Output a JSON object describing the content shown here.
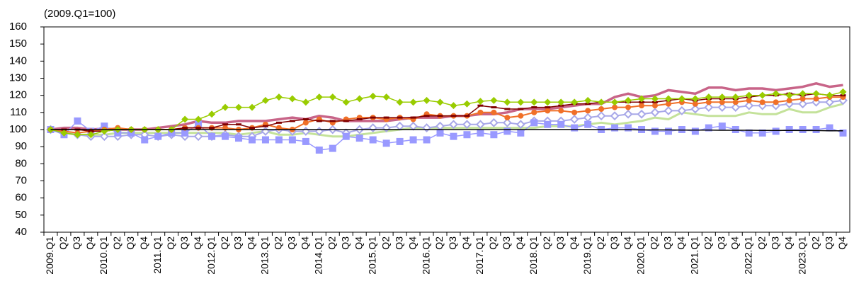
{
  "chart_data": {
    "type": "line",
    "title": "(2009.Q1=100)",
    "categories": [
      "2009.Q1",
      "Q2",
      "Q3",
      "Q4",
      "2010.Q1",
      "Q2",
      "Q3",
      "Q4",
      "2011.Q1",
      "Q2",
      "Q3",
      "Q4",
      "2012.Q1",
      "Q2",
      "Q3",
      "Q4",
      "2013.Q1",
      "Q2",
      "Q3",
      "Q4",
      "2014.Q1",
      "Q2",
      "Q3",
      "Q4",
      "2015.Q1",
      "Q2",
      "Q3",
      "Q4",
      "2016.Q1",
      "Q2",
      "Q3",
      "Q4",
      "2017.Q1",
      "Q2",
      "Q3",
      "Q4",
      "2018.Q1",
      "Q2",
      "Q3",
      "Q4",
      "2019.Q1",
      "Q2",
      "Q3",
      "Q4",
      "2020.Q1",
      "Q2",
      "Q3",
      "Q4",
      "2021.Q1",
      "Q2",
      "Q3",
      "Q4",
      "2022.Q1",
      "Q2",
      "Q3",
      "Q4",
      "2023.Q1",
      "Q2",
      "Q3",
      "Q4"
    ],
    "ylim": [
      40,
      160
    ],
    "yticks": [
      40,
      50,
      60,
      70,
      80,
      90,
      100,
      110,
      120,
      130,
      140,
      150,
      160
    ],
    "series": [
      {
        "color": "#c4e29a",
        "marker": "none",
        "width": 3,
        "values": [
          100,
          98,
          97,
          97,
          97,
          98,
          98,
          98,
          98,
          98,
          98,
          98,
          98,
          98,
          97,
          98,
          99,
          97,
          97,
          98,
          97,
          96,
          96,
          97,
          98,
          99,
          100,
          101,
          101,
          101,
          101,
          101,
          101,
          101,
          101,
          101,
          101,
          102,
          102,
          102,
          103,
          104,
          103,
          104,
          105,
          107,
          106,
          110,
          109,
          108,
          108,
          108,
          110,
          109,
          109,
          112,
          110,
          110,
          113,
          115
        ]
      },
      {
        "color": "#c86488",
        "marker": "none",
        "width": 3.5,
        "values": [
          100,
          101,
          101,
          100,
          100.5,
          100,
          100,
          100,
          101,
          102,
          103,
          105,
          104,
          104,
          105,
          105,
          105,
          106,
          107,
          106,
          108,
          107,
          105,
          105,
          105,
          105,
          106,
          107,
          107,
          107,
          108,
          108,
          109,
          109,
          110,
          112,
          112,
          112,
          113,
          114,
          115,
          115,
          119,
          121,
          119,
          120,
          123,
          122,
          121,
          124.5,
          124.5,
          123,
          124,
          124,
          123,
          124,
          125,
          127,
          125,
          126
        ]
      },
      {
        "color": "#a8a8e8",
        "marker": "diamond-open",
        "width": 2,
        "values": [
          100,
          98,
          97,
          96,
          96,
          96,
          97,
          97,
          96,
          97,
          96,
          96,
          96,
          97,
          96,
          96,
          99,
          100,
          99,
          99,
          99,
          100,
          98,
          100,
          101,
          101,
          102,
          102,
          101,
          102,
          103,
          103,
          103,
          104,
          104,
          103,
          105,
          105,
          105,
          106,
          107,
          108,
          108,
          109,
          109,
          110,
          111,
          111,
          112,
          113,
          113,
          113,
          114,
          114,
          114,
          115,
          115,
          116,
          116,
          117
        ]
      },
      {
        "color": "#9999ff",
        "marker": "square",
        "width": 1.5,
        "values": [
          100,
          97,
          105,
          99,
          102,
          98,
          98,
          94,
          96,
          98,
          98,
          103,
          96,
          96,
          95,
          94,
          94,
          94,
          94,
          93,
          88,
          89,
          96,
          95,
          94,
          92,
          93,
          94,
          94,
          98,
          96,
          97,
          98,
          97,
          99,
          98,
          104,
          103,
          103,
          101,
          103,
          100,
          101,
          101,
          100,
          99,
          99,
          100,
          99,
          101,
          102,
          100,
          98,
          98,
          99,
          100,
          100,
          100,
          101,
          98
        ]
      },
      {
        "color": "#f07028",
        "marker": "circle",
        "width": 2,
        "values": [
          100,
          99,
          98,
          99,
          100,
          101,
          100,
          100,
          100,
          100,
          101,
          101,
          101,
          101,
          100,
          101,
          103,
          101,
          100,
          104,
          106,
          104,
          106,
          107,
          107,
          106,
          107,
          106,
          109,
          108,
          108,
          108,
          110,
          110,
          107,
          108,
          110,
          111,
          111,
          110,
          111,
          112,
          113,
          113,
          114,
          114,
          115,
          116,
          115,
          116,
          116,
          116,
          117,
          116,
          116,
          117,
          118,
          118,
          119,
          119
        ]
      },
      {
        "color": "#800000",
        "marker": "dash",
        "width": 1.5,
        "values": [
          100,
          100,
          100,
          99,
          99,
          100,
          100,
          100,
          100,
          100,
          101,
          101,
          101,
          103,
          103,
          101,
          102,
          104,
          105,
          106,
          105,
          105,
          105,
          106,
          107,
          107,
          107,
          107,
          108,
          108,
          108,
          108,
          114,
          113,
          112,
          112,
          113,
          113,
          114,
          115,
          115,
          116,
          116,
          116,
          116,
          116,
          117,
          118,
          117,
          118,
          118,
          118,
          119,
          120,
          120,
          121,
          120,
          121,
          120,
          120
        ]
      },
      {
        "color": "#99cc00",
        "marker": "diamond",
        "width": 1.5,
        "values": [
          100,
          98,
          97,
          97,
          99,
          100,
          100,
          100,
          100,
          100,
          106,
          106,
          109,
          113,
          113,
          113,
          117,
          119,
          118,
          116,
          119,
          119,
          116,
          118,
          119.5,
          119,
          116,
          116,
          117,
          116,
          114,
          115,
          116.5,
          117,
          116,
          116,
          116,
          116,
          116,
          116,
          117,
          116,
          116,
          117,
          118,
          118,
          118,
          118,
          118,
          119,
          119,
          119,
          120,
          120,
          121,
          120,
          121,
          121,
          120,
          122
        ]
      },
      {
        "color": "#000000",
        "marker": "none",
        "width": 1.5,
        "values": [
          100,
          100,
          100,
          100,
          100,
          100,
          100,
          100,
          100,
          100,
          100,
          100,
          100,
          100,
          100,
          100,
          100,
          100,
          100,
          100,
          100,
          100,
          100,
          100,
          100,
          100,
          100,
          100,
          100,
          100,
          100,
          100,
          100,
          100,
          100,
          100,
          100,
          100,
          100,
          100,
          100,
          99.9,
          99.9,
          99.9,
          99.8,
          99.8,
          99.8,
          99.7,
          99.7,
          99.7,
          99.6,
          99.6,
          99.6,
          99.5,
          99.5,
          99.5,
          99.4,
          99.4,
          99.3,
          99.3
        ]
      }
    ]
  }
}
